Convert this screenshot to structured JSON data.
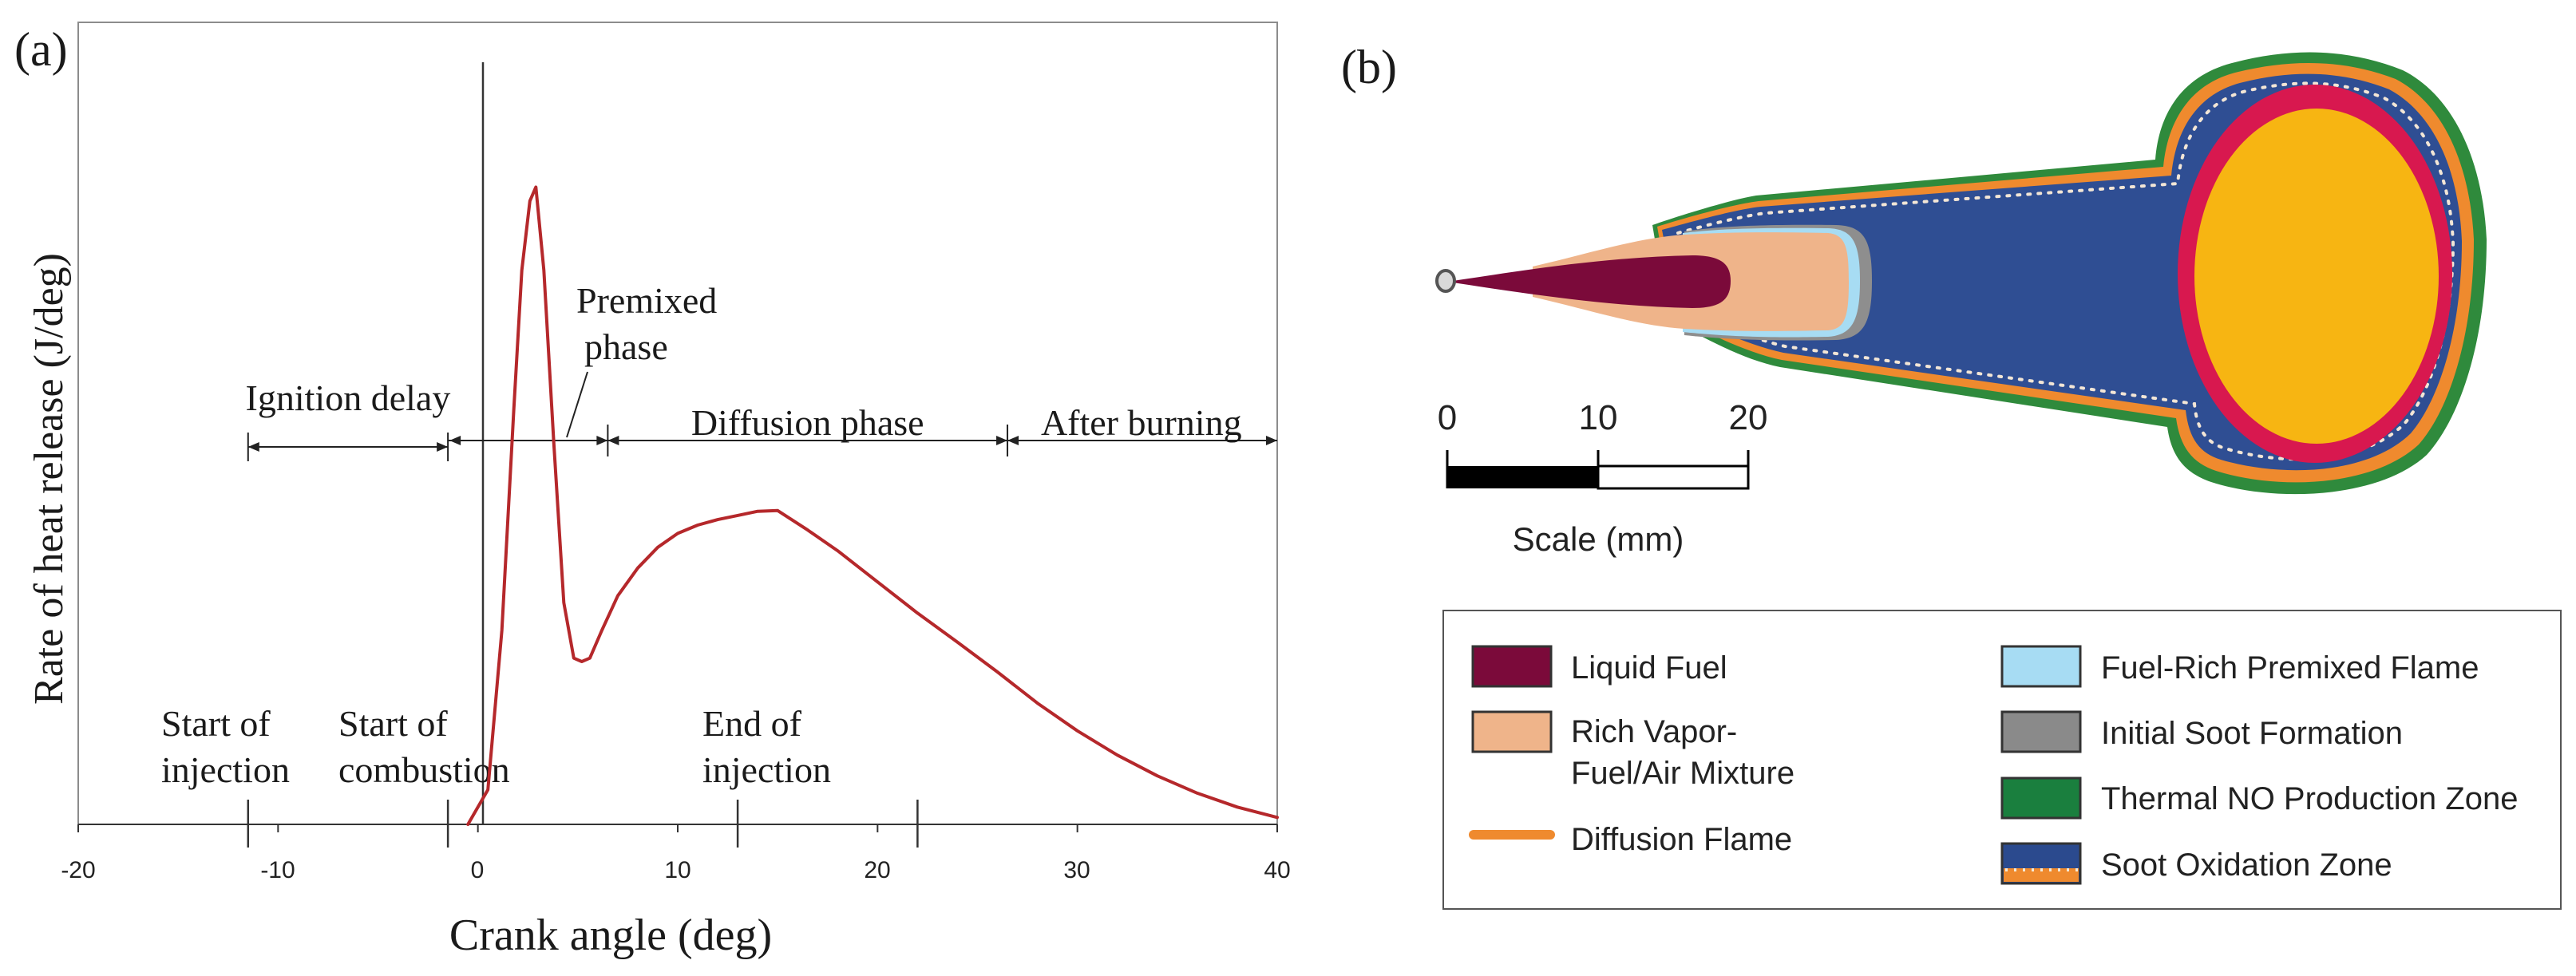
{
  "panel_a": {
    "label": "(a)",
    "chart_data": {
      "type": "line",
      "title": "",
      "xlabel": "Crank angle (deg)",
      "ylabel": "Rate of heat release (J/deg)",
      "xlim": [
        -20,
        40
      ],
      "x_ticks": [
        -20,
        -10,
        0,
        10,
        20,
        30,
        40
      ],
      "x_tick_labels": [
        "-20",
        "-10",
        "0",
        "10",
        "20",
        "30",
        "40"
      ],
      "ylim": [
        0,
        100
      ],
      "grid": false,
      "series": [
        {
          "name": "Rate of heat release",
          "color": "#b5282b",
          "x": [
            -0.5,
            0.5,
            1.2,
            1.8,
            2.2,
            2.6,
            2.9,
            3.3,
            3.8,
            4.3,
            4.8,
            5.2,
            5.6,
            6.2,
            7.0,
            8.0,
            9.0,
            10.0,
            11.0,
            12.0,
            13.0,
            14.0,
            15.0,
            16.5,
            18.0,
            20.0,
            22.0,
            24.0,
            26.0,
            28.0,
            30.0,
            32.0,
            34.0,
            36.0,
            38.0,
            40.0
          ],
          "y": [
            0,
            5,
            28,
            60,
            80,
            90,
            92,
            80,
            55,
            32,
            24,
            23.5,
            24,
            28,
            33,
            37,
            40,
            42,
            43.2,
            44,
            44.6,
            45.2,
            45.3,
            42.5,
            39.5,
            35,
            30.5,
            26.3,
            22,
            17.5,
            13.5,
            10,
            7,
            4.5,
            2.5,
            1
          ]
        }
      ],
      "phase_markers": [
        -11.5,
        -1.5,
        6.5,
        26.5,
        40
      ],
      "phase_labels": [
        {
          "text": "Ignition delay",
          "x": -6.5
        },
        {
          "text": "Diffusion phase",
          "x": 16.5
        },
        {
          "text": "After burning",
          "x": 33.2
        }
      ],
      "premixed_label": {
        "line1": "Premixed",
        "line2": "phase"
      },
      "event_markers": [
        {
          "line1": "Start of",
          "line2": "injection",
          "x": -11.5
        },
        {
          "line1": "Start of",
          "line2": "combustion",
          "x": -1.5
        },
        {
          "line1": "End of",
          "line2": "injection",
          "x": 13.0
        }
      ],
      "extra_tick_x": 22
    }
  },
  "panel_b": {
    "label": "(b)",
    "scale": {
      "ticks": [
        "0",
        "10",
        "20"
      ],
      "label": "Scale (mm)"
    },
    "legend": [
      {
        "key": "liquid-fuel",
        "label_lines": [
          "Liquid Fuel"
        ],
        "fill": "#7b0a3a",
        "style": "box"
      },
      {
        "key": "rich-vapor",
        "label_lines": [
          "Rich Vapor-",
          "Fuel/Air Mixture"
        ],
        "fill": "#f0b48a",
        "style": "box"
      },
      {
        "key": "diffusion-flame",
        "label_lines": [
          "Diffusion Flame"
        ],
        "fill": "#f08a2c",
        "style": "line"
      },
      {
        "key": "fuel-rich-premixed",
        "label_lines": [
          "Fuel-Rich Premixed Flame"
        ],
        "fill": "#a7dcf3",
        "style": "box"
      },
      {
        "key": "initial-soot",
        "label_lines": [
          "Initial Soot Formation"
        ],
        "fill": "#8a8a8a",
        "style": "box"
      },
      {
        "key": "thermal-no",
        "label_lines": [
          "Thermal NO Production Zone"
        ],
        "fill": "#1a7f3e",
        "style": "box"
      },
      {
        "key": "soot-oxidation",
        "label_lines": [
          "Soot Oxidation Zone"
        ],
        "fill": "#2b4a8e",
        "style": "soot"
      }
    ],
    "colors": {
      "green": "#2f8a3c",
      "orange": "#ef8a2e",
      "blue": "#2f4e93",
      "magenta": "#d8184f",
      "yellow": "#f7b512",
      "liquid": "#7b0a3a",
      "vapor": "#efb48a"
    }
  }
}
